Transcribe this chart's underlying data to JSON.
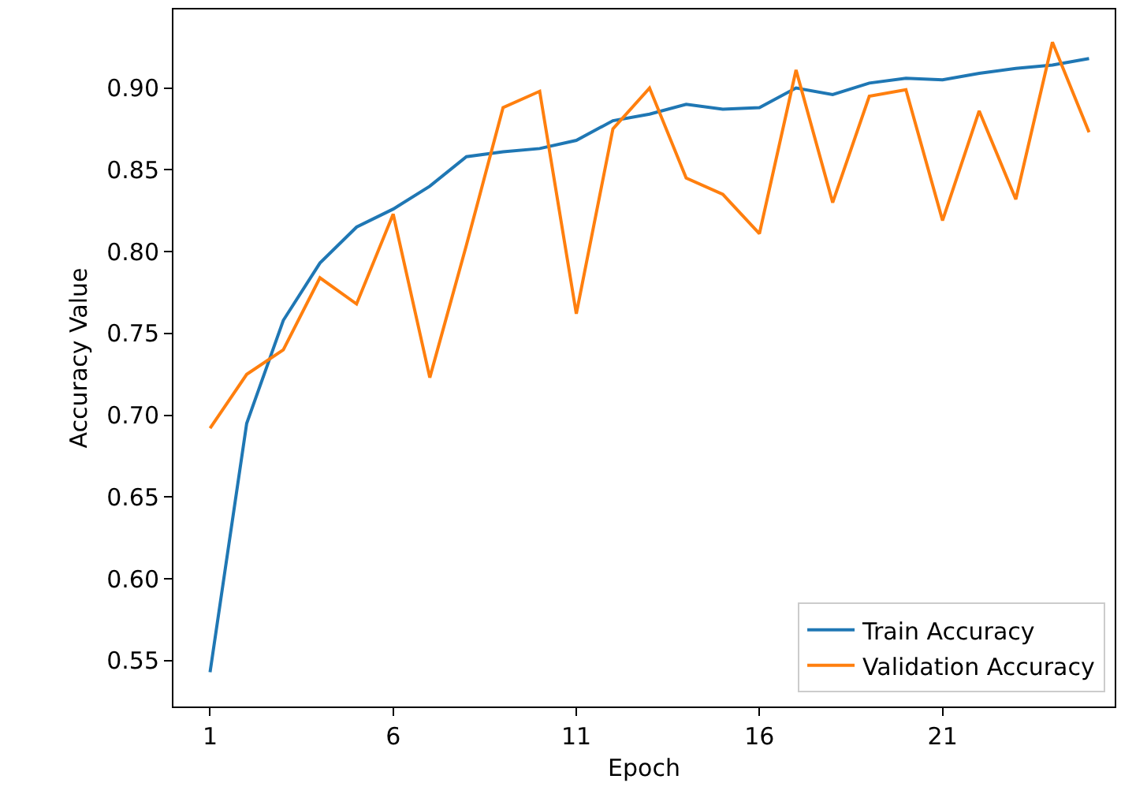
{
  "chart_data": {
    "type": "line",
    "xlabel": "Epoch",
    "ylabel": "Accuracy Value",
    "x": [
      1,
      2,
      3,
      4,
      5,
      6,
      7,
      8,
      9,
      10,
      11,
      12,
      13,
      14,
      15,
      16,
      17,
      18,
      19,
      20,
      21,
      22,
      23,
      24,
      25
    ],
    "series": [
      {
        "name": "Train Accuracy",
        "color": "#1f77b4",
        "values": [
          0.543,
          0.695,
          0.758,
          0.793,
          0.815,
          0.826,
          0.84,
          0.858,
          0.861,
          0.863,
          0.868,
          0.88,
          0.884,
          0.89,
          0.887,
          0.888,
          0.9,
          0.896,
          0.903,
          0.906,
          0.905,
          0.909,
          0.912,
          0.914,
          0.918
        ]
      },
      {
        "name": "Validation Accuracy",
        "color": "#ff7f0e",
        "values": [
          0.692,
          0.725,
          0.74,
          0.784,
          0.768,
          0.823,
          0.723,
          0.804,
          0.888,
          0.898,
          0.762,
          0.875,
          0.9,
          0.845,
          0.835,
          0.811,
          0.911,
          0.83,
          0.895,
          0.899,
          0.819,
          0.886,
          0.832,
          0.928,
          0.873
        ]
      }
    ],
    "xlim": [
      0.0,
      25.7
    ],
    "xticks": [
      1,
      6,
      11,
      16,
      21
    ],
    "ylim": [
      0.522,
      0.948
    ],
    "yticks": [
      {
        "value": 0.55,
        "label": "0.55"
      },
      {
        "value": 0.6,
        "label": "0.60"
      },
      {
        "value": 0.65,
        "label": "0.65"
      },
      {
        "value": 0.7,
        "label": "0.70"
      },
      {
        "value": 0.75,
        "label": "0.75"
      },
      {
        "value": 0.8,
        "label": "0.80"
      },
      {
        "value": 0.85,
        "label": "0.85"
      },
      {
        "value": 0.9,
        "label": "0.90"
      }
    ],
    "grid": false,
    "legend": "bottom right",
    "line_style": "solid",
    "marker": "none"
  }
}
